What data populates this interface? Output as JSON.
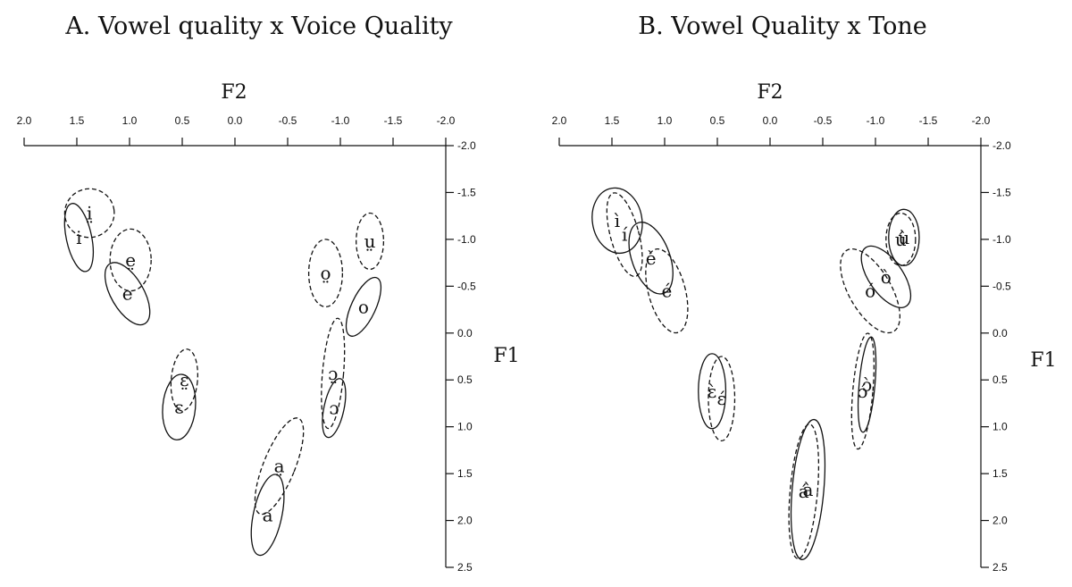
{
  "chart_data": [
    {
      "type": "scatter",
      "title": "A. Vowel quality x Voice Quality",
      "xlabel": "F2",
      "ylabel": "F1",
      "xlim": [
        2.0,
        -2.0
      ],
      "ylim": [
        -2.0,
        2.5
      ],
      "x_ticks": [
        "2.0",
        "1.5",
        "1.0",
        "0.5",
        "0.0",
        "-0.5",
        "-1.0",
        "-1.5",
        "-2.0"
      ],
      "y_ticks": [
        "-2.0",
        "-1.5",
        "-1.0",
        "-0.5",
        "0.0",
        "0.5",
        "1.0",
        "1.5",
        "2.0",
        "2.5"
      ],
      "ellipses": [
        {
          "label": "i̤",
          "x": 1.38,
          "y": -1.28,
          "rx": 0.47,
          "ry": 0.26,
          "angle": -8,
          "style": "dashed"
        },
        {
          "label": "i",
          "x": 1.48,
          "y": -1.02,
          "rx": 0.24,
          "ry": 0.37,
          "angle": -12,
          "style": "solid"
        },
        {
          "label": "e̤",
          "x": 0.99,
          "y": -0.78,
          "rx": 0.39,
          "ry": 0.33,
          "angle": 0,
          "style": "dashed"
        },
        {
          "label": "e",
          "x": 1.02,
          "y": -0.42,
          "rx": 0.31,
          "ry": 0.37,
          "angle": -30,
          "style": "solid"
        },
        {
          "label": "ɛ̤",
          "x": 0.48,
          "y": 0.5,
          "rx": 0.25,
          "ry": 0.33,
          "angle": 5,
          "style": "dashed"
        },
        {
          "label": "ɛ",
          "x": 0.53,
          "y": 0.79,
          "rx": 0.31,
          "ry": 0.35,
          "angle": 5,
          "style": "solid"
        },
        {
          "label": "a̤",
          "x": -0.42,
          "y": 1.42,
          "rx": 0.3,
          "ry": 0.55,
          "angle": 22,
          "style": "dashed"
        },
        {
          "label": "a",
          "x": -0.31,
          "y": 1.94,
          "rx": 0.27,
          "ry": 0.44,
          "angle": 12,
          "style": "solid"
        },
        {
          "label": "ɔ̤",
          "x": -0.93,
          "y": 0.43,
          "rx": 0.2,
          "ry": 0.59,
          "angle": 5,
          "style": "dashed"
        },
        {
          "label": "ɔ",
          "x": -0.94,
          "y": 0.8,
          "rx": 0.19,
          "ry": 0.32,
          "angle": 12,
          "style": "solid"
        },
        {
          "label": "o̤",
          "x": -0.86,
          "y": -0.64,
          "rx": 0.32,
          "ry": 0.36,
          "angle": 0,
          "style": "dashed"
        },
        {
          "label": "o",
          "x": -1.22,
          "y": -0.28,
          "rx": 0.23,
          "ry": 0.34,
          "angle": 25,
          "style": "solid"
        },
        {
          "label": "ṳ",
          "x": -1.28,
          "y": -0.98,
          "rx": 0.26,
          "ry": 0.3,
          "angle": 0,
          "style": "dashed"
        }
      ]
    },
    {
      "type": "scatter",
      "title": "B. Vowel Quality x Tone",
      "xlabel": "F2",
      "ylabel": "F1",
      "xlim": [
        2.0,
        -2.0
      ],
      "ylim": [
        -2.0,
        2.5
      ],
      "x_ticks": [
        "2.0",
        "1.5",
        "1.0",
        "0.5",
        "0.0",
        "-0.5",
        "-1.0",
        "-1.5",
        "-2.0"
      ],
      "y_ticks": [
        "-2.0",
        "-1.5",
        "-1.0",
        "-0.5",
        "0.0",
        "0.5",
        "1.0",
        "1.5",
        "2.0",
        "2.5"
      ],
      "ellipses": [
        {
          "label": "ì",
          "x": 1.45,
          "y": -1.2,
          "rx": 0.47,
          "ry": 0.35,
          "angle": -10,
          "style": "solid"
        },
        {
          "label": "í",
          "x": 1.38,
          "y": -1.05,
          "rx": 0.27,
          "ry": 0.46,
          "angle": -15,
          "style": "dashed"
        },
        {
          "label": "è",
          "x": 1.13,
          "y": -0.8,
          "rx": 0.36,
          "ry": 0.4,
          "angle": -20,
          "style": "solid"
        },
        {
          "label": "é",
          "x": 0.98,
          "y": -0.45,
          "rx": 0.35,
          "ry": 0.46,
          "angle": -15,
          "style": "dashed"
        },
        {
          "label": "ɛ̀",
          "x": 0.55,
          "y": 0.62,
          "rx": 0.26,
          "ry": 0.4,
          "angle": 0,
          "style": "solid"
        },
        {
          "label": "ɛ́",
          "x": 0.46,
          "y": 0.7,
          "rx": 0.25,
          "ry": 0.45,
          "angle": 0,
          "style": "dashed"
        },
        {
          "label": "à",
          "x": -0.36,
          "y": 1.67,
          "rx": 0.3,
          "ry": 0.75,
          "angle": 5,
          "style": "solid"
        },
        {
          "label": "á",
          "x": -0.32,
          "y": 1.69,
          "rx": 0.26,
          "ry": 0.72,
          "angle": 5,
          "style": "dashed"
        },
        {
          "label": "ɔ̀",
          "x": -0.92,
          "y": 0.55,
          "rx": 0.15,
          "ry": 0.51,
          "angle": 5,
          "style": "solid"
        },
        {
          "label": "ɔ́",
          "x": -0.88,
          "y": 0.62,
          "rx": 0.19,
          "ry": 0.62,
          "angle": 5,
          "style": "dashed"
        },
        {
          "label": "ò",
          "x": -1.1,
          "y": -0.6,
          "rx": 0.32,
          "ry": 0.38,
          "angle": -35,
          "style": "solid"
        },
        {
          "label": "ó",
          "x": -0.95,
          "y": -0.45,
          "rx": 0.4,
          "ry": 0.5,
          "angle": -30,
          "style": "dashed"
        },
        {
          "label": "ù",
          "x": -1.27,
          "y": -1.02,
          "rx": 0.29,
          "ry": 0.3,
          "angle": 0,
          "style": "solid"
        },
        {
          "label": "ú",
          "x": -1.24,
          "y": -1.0,
          "rx": 0.28,
          "ry": 0.28,
          "angle": 0,
          "style": "dashed"
        }
      ]
    }
  ]
}
